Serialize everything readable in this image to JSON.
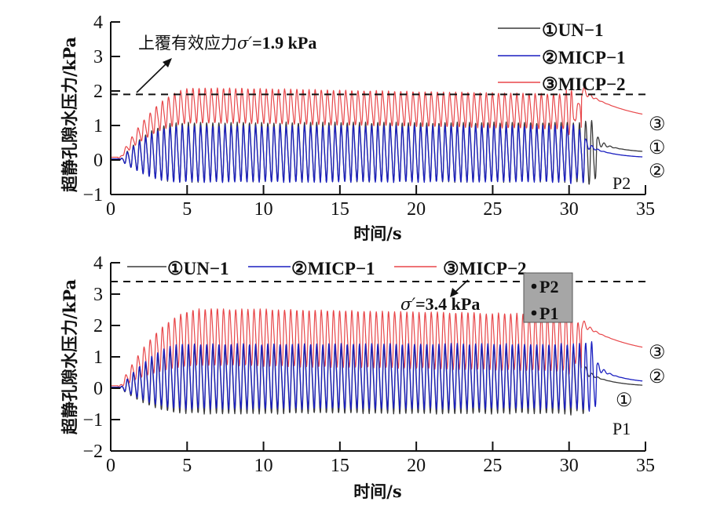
{
  "chart_data": [
    {
      "type": "line",
      "panel": "P2",
      "title": "",
      "xlabel": "时间/s",
      "ylabel": "超静孔隙水压力/kPa",
      "xlim": [
        0,
        35
      ],
      "ylim": [
        -1,
        4
      ],
      "xticks": [
        0,
        5,
        10,
        15,
        20,
        25,
        30,
        35
      ],
      "yticks": [
        -1,
        0,
        1,
        2,
        3,
        4
      ],
      "xtick_labels": [
        "0",
        "5",
        "10",
        "15",
        "20",
        "25",
        "30",
        "35"
      ],
      "ytick_labels": [
        "−1",
        "0",
        "1",
        "2",
        "3",
        "4"
      ],
      "grid": false,
      "legend": {
        "placement": "top-right",
        "entries": [
          {
            "marker": "①",
            "label": "UN−1",
            "color": "#3a3a3a"
          },
          {
            "marker": "②",
            "label": "MICP−1",
            "color": "#1a1fc0"
          },
          {
            "marker": "③",
            "label": "MICP−2",
            "color": "#e8474a"
          }
        ]
      },
      "reference_line": {
        "value": 1.9,
        "style": "dashed",
        "color": "#111111"
      },
      "annotation": {
        "text_prefix": "上覆有效应力",
        "symbol": "σ′",
        "text_suffix": "=1.9 kPa"
      },
      "panel_label": "P2",
      "end_markers": [
        "③",
        "①",
        "②"
      ],
      "loading_frequency_hz": 2.5,
      "series": [
        {
          "name": "①UN−1",
          "color": "#3a3a3a",
          "onset_s": 0.6,
          "rise_end_s": 4.5,
          "mean_kpa": 0.25,
          "peak_kpa": 1.2,
          "trough_kpa": -0.75,
          "shake_end_s": 31.8,
          "final_kpa": 0.2
        },
        {
          "name": "②MICP−1",
          "color": "#1a1fc0",
          "onset_s": 0.6,
          "rise_end_s": 4.5,
          "mean_kpa": 0.2,
          "peak_kpa": 1.1,
          "trough_kpa": -0.75,
          "shake_end_s": 31.0,
          "final_kpa": 0.05
        },
        {
          "name": "③MICP−2",
          "color": "#e8474a",
          "onset_s": 0.5,
          "rise_end_s": 5.5,
          "mean_kpa": 1.55,
          "peak_kpa": 2.15,
          "trough_kpa": 1.0,
          "shake_end_s": 30.8,
          "final_kpa": 1.05
        }
      ]
    },
    {
      "type": "line",
      "panel": "P1",
      "title": "",
      "xlabel": "时间/s",
      "ylabel": "超静孔隙水压力/kPa",
      "xlim": [
        0,
        35
      ],
      "ylim": [
        -2,
        4
      ],
      "xticks": [
        0,
        5,
        10,
        15,
        20,
        25,
        30,
        35
      ],
      "yticks": [
        -2,
        -1,
        0,
        1,
        2,
        3,
        4
      ],
      "xtick_labels": [
        "0",
        "5",
        "10",
        "15",
        "20",
        "25",
        "30",
        "35"
      ],
      "ytick_labels": [
        "−2",
        "−1",
        "0",
        "1",
        "2",
        "3",
        "4"
      ],
      "grid": false,
      "legend": {
        "placement": "top",
        "entries": [
          {
            "marker": "①",
            "label": "UN−1",
            "color": "#3a3a3a"
          },
          {
            "marker": "②",
            "label": "MICP−1",
            "color": "#1a1fc0"
          },
          {
            "marker": "③",
            "label": "MICP−2",
            "color": "#e8474a"
          }
        ]
      },
      "reference_line": {
        "value": 3.4,
        "style": "dashed",
        "color": "#111111"
      },
      "annotation": {
        "symbol": "σ′",
        "text_suffix": "=3.4 kPa"
      },
      "inset": {
        "items": [
          "P2",
          "P1"
        ],
        "background": "#a6a6a6"
      },
      "panel_label": "P1",
      "end_markers": [
        "③",
        "②",
        "①"
      ],
      "loading_frequency_hz": 2.5,
      "series": [
        {
          "name": "①UN−1",
          "color": "#3a3a3a",
          "onset_s": 0.6,
          "rise_end_s": 5.0,
          "mean_kpa": 0.35,
          "peak_kpa": 1.45,
          "trough_kpa": -0.95,
          "shake_end_s": 31.0,
          "final_kpa": 0.05
        },
        {
          "name": "②MICP−1",
          "color": "#1a1fc0",
          "onset_s": 0.6,
          "rise_end_s": 5.0,
          "mean_kpa": 0.35,
          "peak_kpa": 1.55,
          "trough_kpa": -0.8,
          "shake_end_s": 31.8,
          "final_kpa": 0.15
        },
        {
          "name": "③MICP−2",
          "color": "#e8474a",
          "onset_s": 0.5,
          "rise_end_s": 6.0,
          "mean_kpa": 1.6,
          "peak_kpa": 2.65,
          "trough_kpa": 0.6,
          "shake_end_s": 30.8,
          "final_kpa": 1.0
        }
      ]
    }
  ],
  "labels": {
    "top": {
      "annotation_prefix": "上覆有效应力",
      "annotation_symbol": "σ′",
      "annotation_value": "=1.9 kPa",
      "panel": "P2",
      "xlabel": "时间/s",
      "ylabel": "超静孔隙水压力/kPa"
    },
    "bottom": {
      "annotation_symbol": "σ′",
      "annotation_value": "=3.4 kPa",
      "panel": "P1",
      "xlabel": "时间/s",
      "ylabel": "超静孔隙水压力/kPa",
      "inset_p2": "P2",
      "inset_p1": "P1"
    },
    "legend": [
      {
        "marker": "①",
        "label": "UN−1"
      },
      {
        "marker": "②",
        "label": "MICP−1"
      },
      {
        "marker": "③",
        "label": "MICP−2"
      }
    ],
    "end_markers_top": [
      "③",
      "①",
      "②"
    ],
    "end_markers_bottom": [
      "③",
      "②",
      "①"
    ]
  }
}
